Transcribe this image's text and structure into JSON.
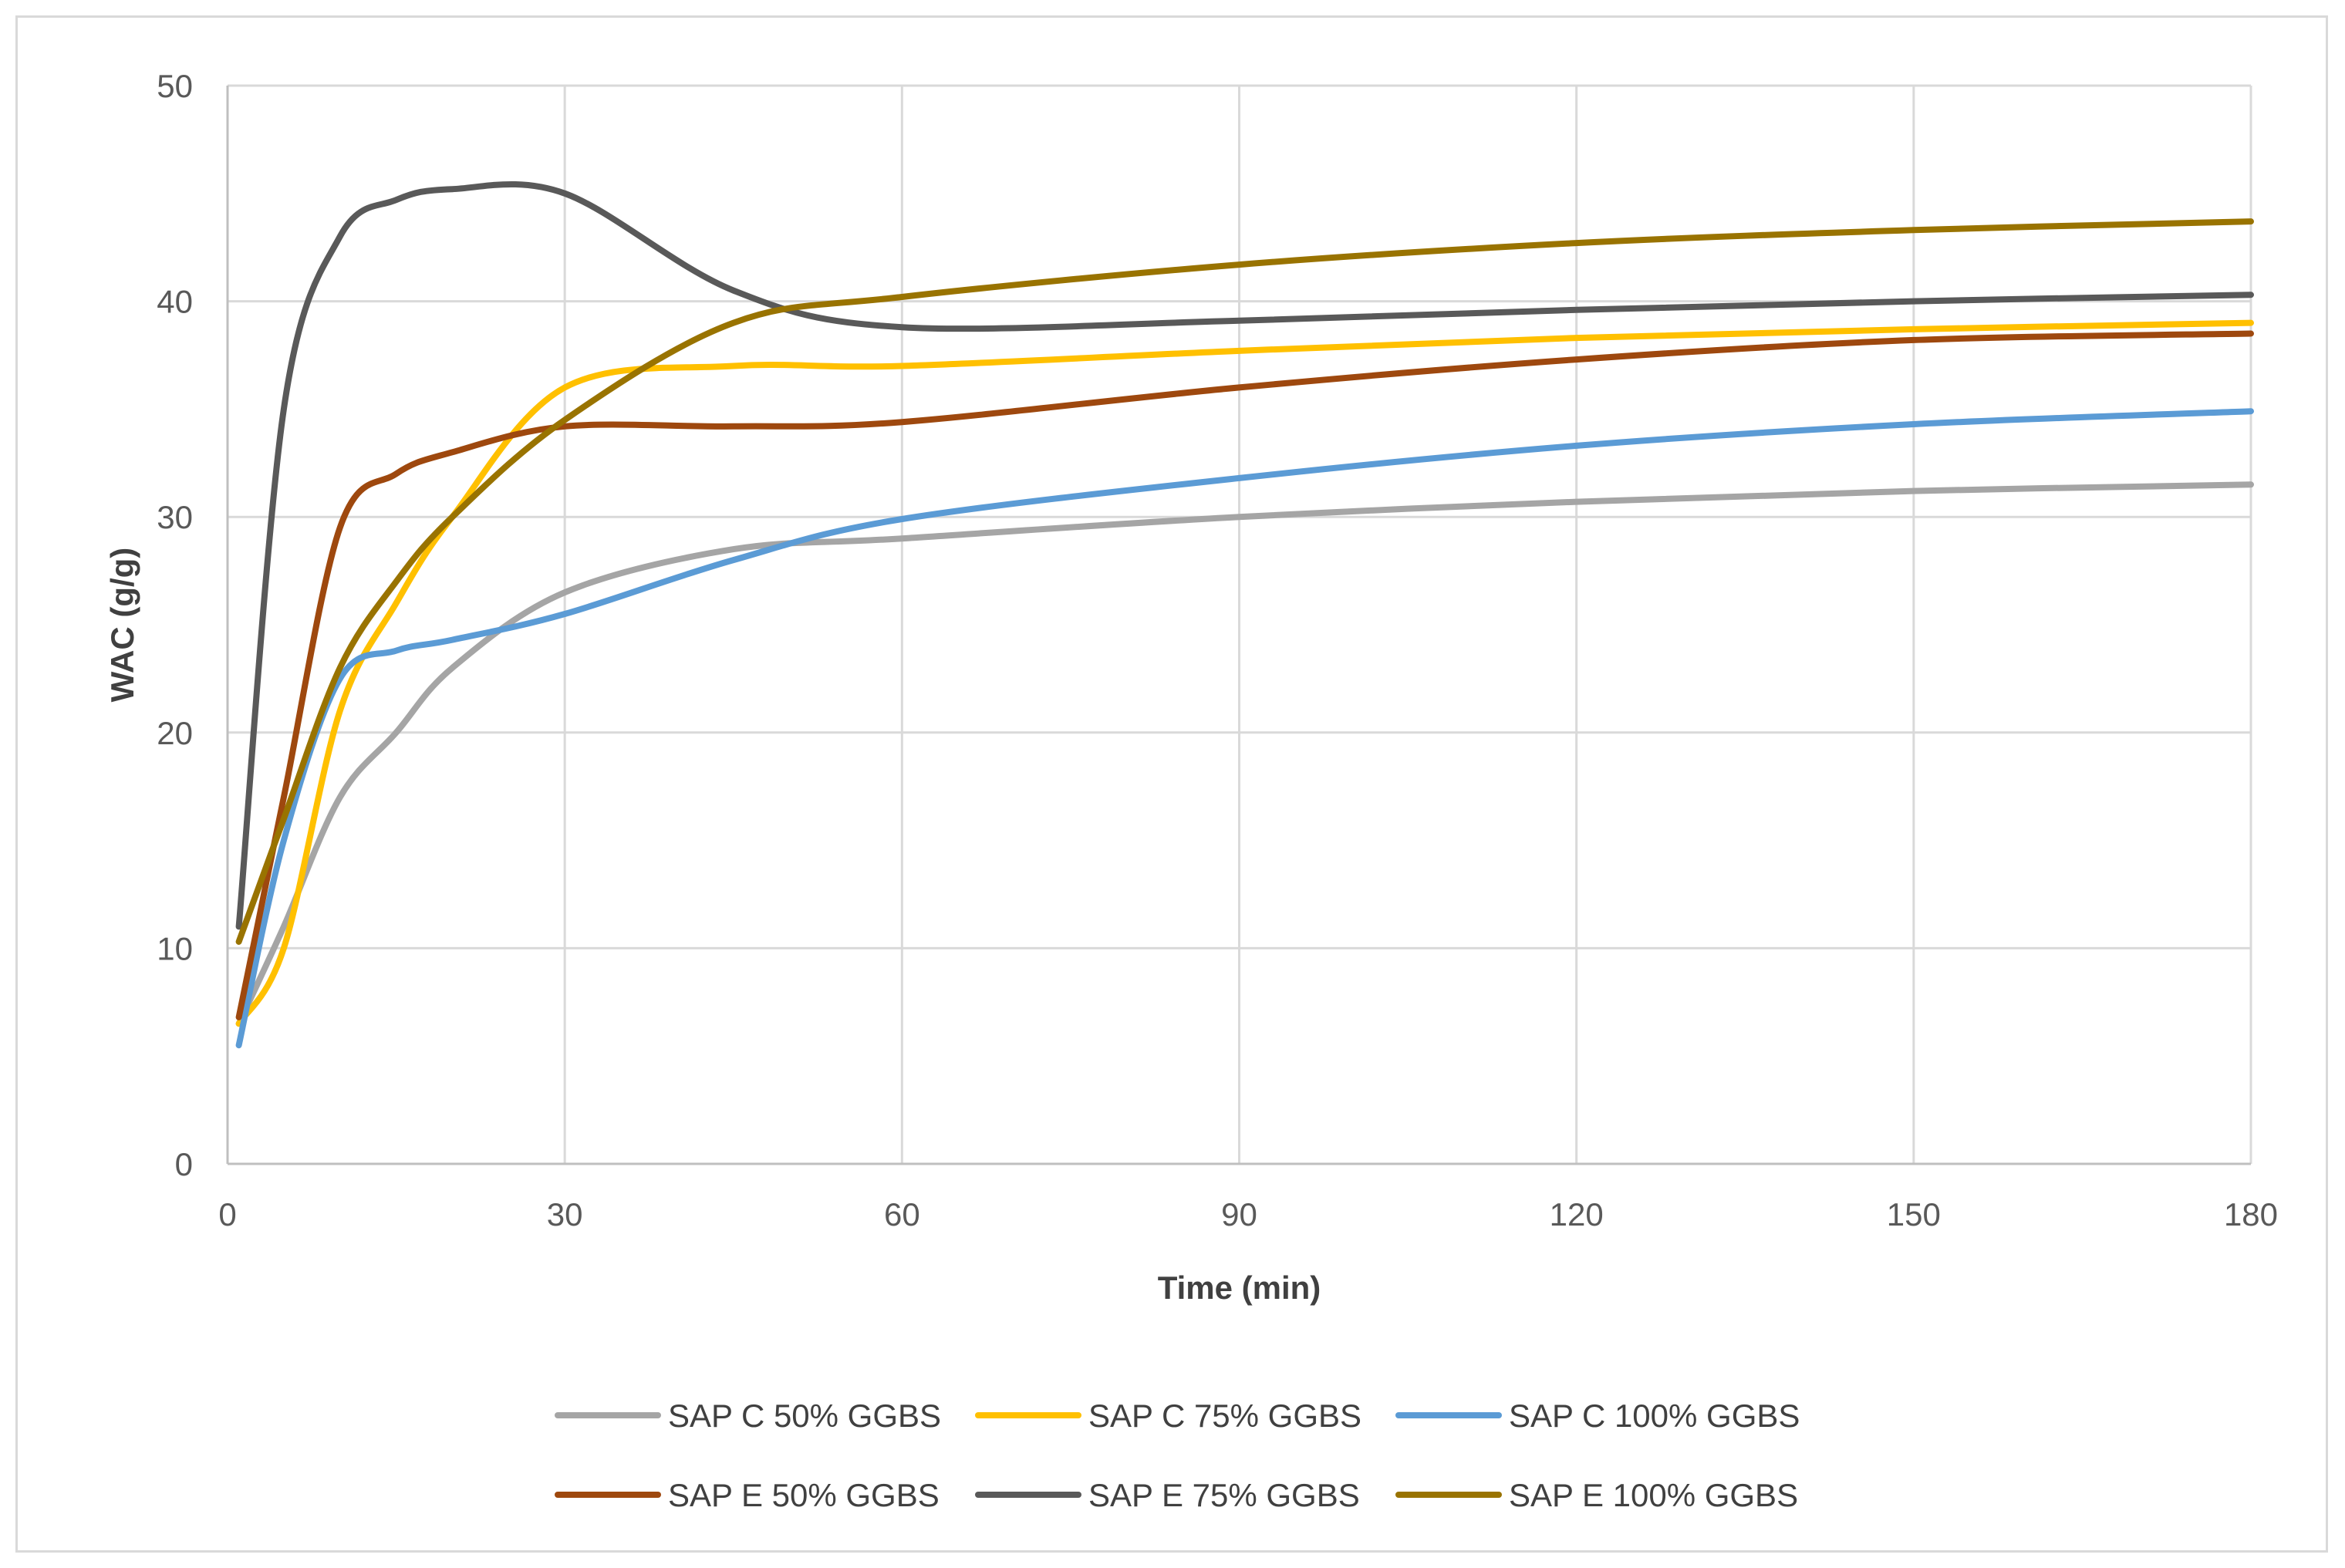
{
  "chart_data": {
    "type": "line",
    "title": "",
    "xlabel": "Time (min)",
    "ylabel": "WAC (g/g)",
    "xlim": [
      0,
      180
    ],
    "ylim": [
      0,
      50
    ],
    "xticks": [
      0,
      30,
      60,
      90,
      120,
      150,
      180
    ],
    "yticks": [
      0,
      10,
      20,
      30,
      40,
      50
    ],
    "grid": true,
    "legend_position": "bottom",
    "series": [
      {
        "name": "SAP C 50% GGBS",
        "color": "#a5a5a5",
        "x": [
          1,
          5,
          10,
          15,
          20,
          30,
          45,
          60,
          90,
          120,
          150,
          180
        ],
        "y": [
          6.5,
          11,
          17,
          20,
          23,
          26.5,
          28.5,
          29,
          30,
          30.7,
          31.2,
          31.5
        ]
      },
      {
        "name": "SAP C 75% GGBS",
        "color": "#ffc000",
        "x": [
          1,
          5,
          10,
          15,
          20,
          30,
          45,
          60,
          90,
          120,
          150,
          180
        ],
        "y": [
          6.5,
          10,
          21,
          26,
          30,
          36,
          37,
          37,
          37.7,
          38.3,
          38.7,
          39
        ]
      },
      {
        "name": "SAP C 100% GGBS",
        "color": "#5b9bd5",
        "x": [
          1,
          5,
          10,
          15,
          20,
          30,
          45,
          60,
          90,
          120,
          150,
          180
        ],
        "y": [
          5.5,
          15,
          22.5,
          23.8,
          24.3,
          25.5,
          28,
          29.9,
          31.8,
          33.3,
          34.3,
          34.9
        ]
      },
      {
        "name": "SAP E 50% GGBS",
        "color": "#9e480e",
        "x": [
          1,
          5,
          10,
          15,
          20,
          30,
          45,
          60,
          90,
          120,
          150,
          180
        ],
        "y": [
          6.8,
          17,
          29.5,
          32,
          33,
          34.2,
          34.2,
          34.4,
          36,
          37.3,
          38.2,
          38.5
        ]
      },
      {
        "name": "SAP E 75% GGBS",
        "color": "#595959",
        "x": [
          1,
          5,
          10,
          15,
          20,
          30,
          45,
          60,
          90,
          120,
          150,
          180
        ],
        "y": [
          11,
          35,
          43,
          44.7,
          45.2,
          45,
          40.5,
          38.8,
          39.1,
          39.6,
          40,
          40.3
        ]
      },
      {
        "name": "SAP E 100% GGBS",
        "color": "#997300",
        "x": [
          1,
          5,
          10,
          15,
          20,
          30,
          45,
          60,
          90,
          120,
          150,
          180
        ],
        "y": [
          10.3,
          16,
          23,
          27,
          30,
          34.5,
          39,
          40.2,
          41.7,
          42.7,
          43.3,
          43.7
        ]
      }
    ]
  }
}
